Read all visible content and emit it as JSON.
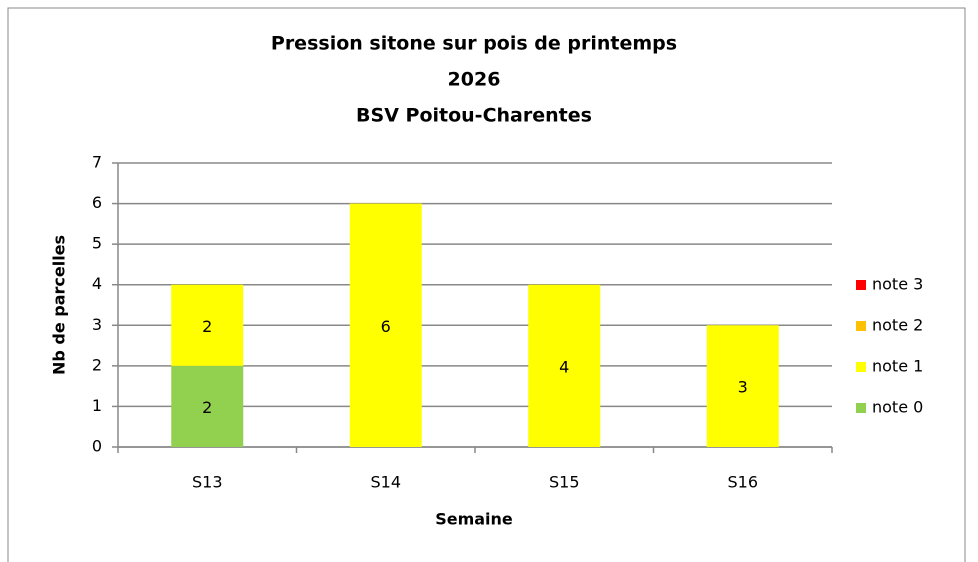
{
  "chart_data": {
    "type": "stacked_bar",
    "title": [
      "Pression sitone sur pois de printemps",
      "2026",
      "BSV Poitou-Charentes"
    ],
    "x_label": "Semaine",
    "y_label": "Nb de parcelles",
    "categories": [
      "S13",
      "S14",
      "S15",
      "S16"
    ],
    "series": [
      {
        "name": "note 0",
        "color": "#92d050",
        "values": [
          2,
          0,
          0,
          0
        ]
      },
      {
        "name": "note 1",
        "color": "#ffff00",
        "values": [
          2,
          6,
          4,
          3
        ]
      },
      {
        "name": "note 2",
        "color": "#ffc000",
        "values": [
          0,
          0,
          0,
          0
        ]
      },
      {
        "name": "note 3",
        "color": "#ff0000",
        "values": [
          0,
          0,
          0,
          0
        ]
      }
    ],
    "ylim": [
      0,
      7
    ],
    "yticks": [
      0,
      1,
      2,
      3,
      4,
      5,
      6,
      7
    ],
    "grid": true,
    "legend": "right"
  }
}
